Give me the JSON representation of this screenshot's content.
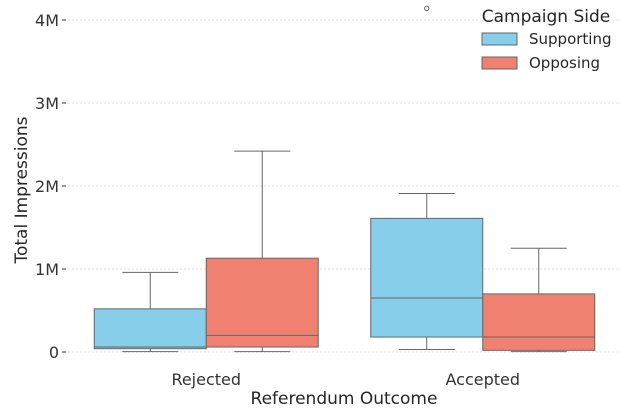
{
  "chart_data": {
    "type": "box",
    "xlabel": "Referendum Outcome",
    "ylabel": "Total Impressions",
    "categories": [
      "Rejected",
      "Accepted"
    ],
    "ylim": [
      0,
      4000000
    ],
    "yticks": [
      {
        "value": 0,
        "label": "0"
      },
      {
        "value": 1000000,
        "label": "1M"
      },
      {
        "value": 2000000,
        "label": "2M"
      },
      {
        "value": 3000000,
        "label": "3M"
      },
      {
        "value": 4000000,
        "label": "4M"
      }
    ],
    "grid": true,
    "legend": {
      "title": "Campaign Side",
      "position": "top-right"
    },
    "series": [
      {
        "name": "Supporting",
        "color": "#87CEEB",
        "boxes": [
          {
            "category": "Rejected",
            "whislo": 5000,
            "q1": 40000,
            "median": 60000,
            "q3": 520000,
            "whishi": 960000,
            "fliers": []
          },
          {
            "category": "Accepted",
            "whislo": 30000,
            "q1": 180000,
            "median": 650000,
            "q3": 1610000,
            "whishi": 1910000,
            "fliers": [
              4140000
            ]
          }
        ]
      },
      {
        "name": "Opposing",
        "color": "#F08070",
        "boxes": [
          {
            "category": "Rejected",
            "whislo": 5000,
            "q1": 60000,
            "median": 200000,
            "q3": 1130000,
            "whishi": 2420000,
            "fliers": []
          },
          {
            "category": "Accepted",
            "whislo": 5000,
            "q1": 20000,
            "median": 180000,
            "q3": 700000,
            "whishi": 1250000,
            "fliers": []
          }
        ]
      }
    ]
  }
}
